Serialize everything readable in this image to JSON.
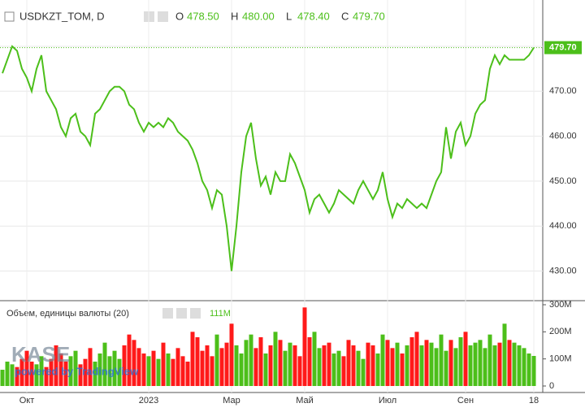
{
  "chart_data": {
    "type": "line",
    "title": "USDKZT_TOM, D",
    "ohlc": {
      "labels": [
        "O",
        "H",
        "L",
        "C"
      ],
      "values": [
        478.5,
        480,
        478.4,
        479.7
      ],
      "value_labels": [
        "478.50",
        "480.00",
        "478.40",
        "479.70"
      ]
    },
    "categories": [
      null,
      null,
      null,
      null,
      null,
      "Окт",
      null,
      null,
      null,
      null,
      null,
      null,
      null,
      null,
      null,
      null,
      null,
      null,
      null,
      null,
      null,
      null,
      null,
      null,
      null,
      null,
      null,
      null,
      null,
      null,
      "2023",
      null,
      null,
      null,
      null,
      null,
      null,
      null,
      null,
      null,
      null,
      null,
      null,
      null,
      null,
      null,
      null,
      "Мар",
      null,
      null,
      null,
      null,
      null,
      null,
      null,
      null,
      null,
      null,
      null,
      null,
      null,
      null,
      "Май",
      null,
      null,
      null,
      null,
      null,
      null,
      null,
      null,
      null,
      null,
      null,
      null,
      null,
      null,
      null,
      null,
      "Июл",
      null,
      null,
      null,
      null,
      null,
      null,
      null,
      null,
      null,
      null,
      null,
      null,
      null,
      null,
      null,
      "Сен",
      null,
      null,
      null,
      null,
      null,
      null,
      null,
      null,
      null,
      null,
      null,
      null,
      null,
      "18"
    ],
    "values": [
      474,
      477,
      480,
      479,
      475,
      473,
      470,
      475,
      478,
      470,
      468,
      466,
      462,
      460,
      464,
      465,
      461,
      460,
      458,
      465,
      466,
      468,
      470,
      471,
      471,
      470,
      467,
      466,
      463,
      461,
      463,
      462,
      463,
      462,
      464,
      463,
      461,
      460,
      459,
      457,
      454,
      450,
      448,
      444,
      448,
      447,
      440,
      430,
      440,
      452,
      460,
      463,
      455,
      449,
      451,
      447,
      452,
      450,
      450,
      456,
      454,
      451,
      448,
      443,
      446,
      447,
      445,
      443,
      445,
      448,
      447,
      446,
      445,
      448,
      450,
      448,
      446,
      448,
      452,
      446,
      442,
      445,
      444,
      446,
      445,
      444,
      445,
      444,
      447,
      450,
      452,
      462,
      455,
      461,
      463,
      458,
      460,
      465,
      467,
      468,
      475,
      478,
      476,
      478,
      477,
      477,
      477,
      477,
      478,
      479.7
    ],
    "color": "#4cbf1a",
    "ylim": [
      423.4,
      490.3
    ],
    "yticks": [
      {
        "value": 430,
        "label": "430.00"
      },
      {
        "value": 440,
        "label": "440.00"
      },
      {
        "value": 450,
        "label": "450.00"
      },
      {
        "value": 460,
        "label": "460.00"
      },
      {
        "value": 470,
        "label": "470.00"
      },
      {
        "value": 480,
        "label": "480.00"
      }
    ],
    "grid": true,
    "watermark": [
      "KASE",
      "powered by TradingView"
    ],
    "volume": {
      "type": "bar",
      "title": "Объем, единицы валюты (20)",
      "values": [
        60,
        90,
        80,
        70,
        100,
        130,
        90,
        80,
        110,
        70,
        100,
        150,
        120,
        90,
        110,
        130,
        80,
        100,
        140,
        90,
        120,
        160,
        110,
        130,
        100,
        150,
        190,
        170,
        140,
        120,
        110,
        130,
        100,
        160,
        120,
        100,
        140,
        110,
        90,
        200,
        180,
        130,
        150,
        110,
        190,
        140,
        160,
        230,
        150,
        120,
        170,
        190,
        140,
        180,
        120,
        150,
        200,
        170,
        130,
        160,
        150,
        110,
        290,
        180,
        200,
        140,
        150,
        160,
        120,
        130,
        110,
        170,
        150,
        130,
        100,
        160,
        150,
        120,
        190,
        170,
        140,
        160,
        120,
        150,
        180,
        200,
        150,
        170,
        160,
        140,
        190,
        130,
        170,
        140,
        180,
        200,
        150,
        160,
        170,
        140,
        190,
        150,
        160,
        230,
        170,
        160,
        150,
        140,
        120,
        111
      ],
      "value_labels": [
        null,
        null,
        null,
        null,
        null,
        null,
        null,
        null,
        null,
        null,
        null,
        null,
        null,
        null,
        null,
        null,
        null,
        null,
        null,
        null,
        null,
        null,
        null,
        null,
        null,
        null,
        null,
        null,
        null,
        null,
        null,
        null,
        null,
        null,
        null,
        null,
        null,
        null,
        null,
        null,
        null,
        null,
        null,
        null,
        null,
        null,
        null,
        null,
        null,
        null,
        null,
        null,
        null,
        null,
        null,
        null,
        null,
        null,
        null,
        null,
        null,
        null,
        null,
        null,
        null,
        null,
        null,
        null,
        null,
        null,
        null,
        null,
        null,
        null,
        null,
        null,
        null,
        null,
        null,
        null,
        null,
        null,
        null,
        null,
        null,
        null,
        null,
        null,
        null,
        null,
        null,
        null,
        null,
        null,
        null,
        null,
        null,
        null,
        null,
        null,
        null,
        null,
        null,
        null,
        null,
        null,
        null,
        null,
        null,
        "111M"
      ],
      "up_color": "#4cbf1a",
      "down_color": "#ff1a1a",
      "ylim": [
        -24,
        315
      ],
      "yticks": [
        0,
        {
          "value": 100,
          "label": "100M"
        },
        {
          "value": 200,
          "label": "200M"
        },
        {
          "value": 300,
          "label": "300M"
        }
      ]
    }
  }
}
